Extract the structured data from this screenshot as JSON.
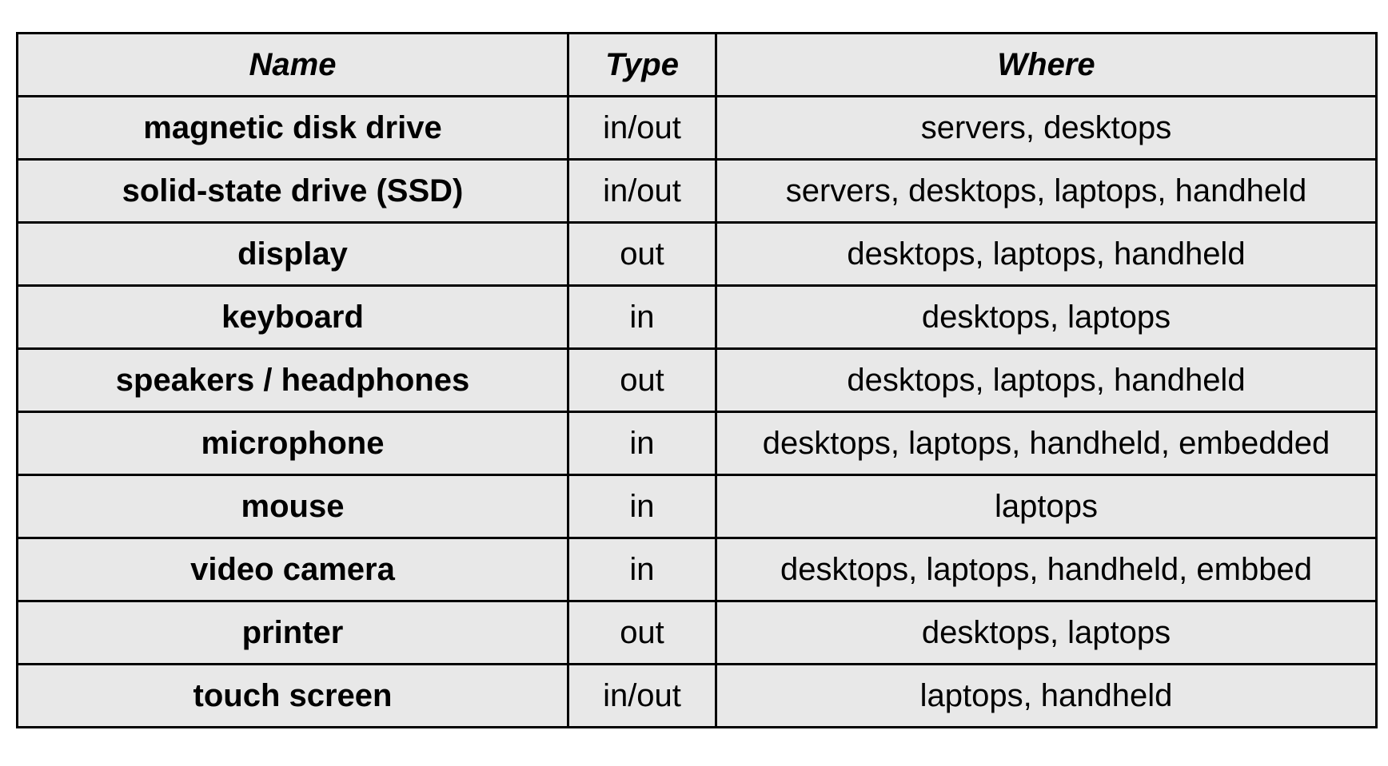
{
  "table": {
    "headers": [
      "Name",
      "Type",
      "Where"
    ],
    "rows": [
      {
        "name": "magnetic disk drive",
        "type": "in/out",
        "where": "servers, desktops"
      },
      {
        "name": "solid-state drive (SSD)",
        "type": "in/out",
        "where": "servers, desktops, laptops, handheld"
      },
      {
        "name": "display",
        "type": "out",
        "where": "desktops, laptops, handheld"
      },
      {
        "name": "keyboard",
        "type": "in",
        "where": "desktops, laptops"
      },
      {
        "name": "speakers / headphones",
        "type": "out",
        "where": "desktops, laptops, handheld"
      },
      {
        "name": "microphone",
        "type": "in",
        "where": "desktops, laptops, handheld, embedded"
      },
      {
        "name": "mouse",
        "type": "in",
        "where": "laptops"
      },
      {
        "name": "video camera",
        "type": "in",
        "where": "desktops, laptops, handheld, embbed"
      },
      {
        "name": "printer",
        "type": "out",
        "where": "desktops, laptops"
      },
      {
        "name": "touch screen",
        "type": "in/out",
        "where": "laptops, handheld"
      }
    ]
  }
}
